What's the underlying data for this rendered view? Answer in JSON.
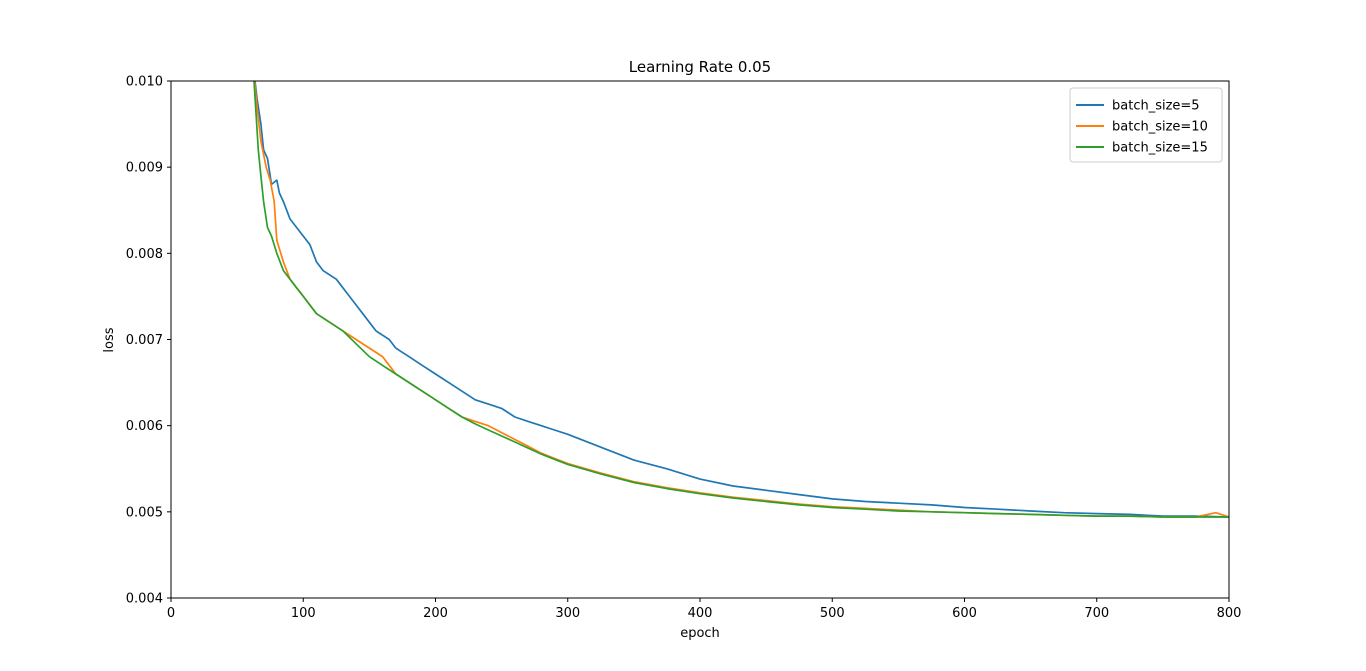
{
  "chart_data": {
    "type": "line",
    "title": "Learning Rate 0.05",
    "xlabel": "epoch",
    "ylabel": "loss",
    "xlim": [
      0,
      800
    ],
    "ylim": [
      0.004,
      0.01
    ],
    "xticks": [
      0,
      100,
      200,
      300,
      400,
      500,
      600,
      700,
      800
    ],
    "xtick_labels": [
      "0",
      "100",
      "200",
      "300",
      "400",
      "500",
      "600",
      "700",
      "800"
    ],
    "yticks": [
      0.004,
      0.005,
      0.006,
      0.007,
      0.008,
      0.009,
      0.01
    ],
    "ytick_labels": [
      "0.004",
      "0.005",
      "0.006",
      "0.007",
      "0.008",
      "0.009",
      "0.010"
    ],
    "grid": false,
    "legend": "top-right",
    "series": [
      {
        "name": "batch_size=5",
        "color": "#1f77b4",
        "points": [
          [
            62,
            0.0102
          ],
          [
            65,
            0.0098
          ],
          [
            68,
            0.0095
          ],
          [
            70,
            0.0092
          ],
          [
            73,
            0.0091
          ],
          [
            76,
            0.0088
          ],
          [
            80,
            0.00885
          ],
          [
            82,
            0.0087
          ],
          [
            85,
            0.0086
          ],
          [
            90,
            0.0084
          ],
          [
            95,
            0.0083
          ],
          [
            100,
            0.0082
          ],
          [
            105,
            0.0081
          ],
          [
            110,
            0.0079
          ],
          [
            115,
            0.0078
          ],
          [
            120,
            0.00775
          ],
          [
            125,
            0.0077
          ],
          [
            130,
            0.0076
          ],
          [
            135,
            0.0075
          ],
          [
            140,
            0.0074
          ],
          [
            145,
            0.0073
          ],
          [
            150,
            0.0072
          ],
          [
            155,
            0.0071
          ],
          [
            160,
            0.00705
          ],
          [
            165,
            0.007
          ],
          [
            170,
            0.0069
          ],
          [
            175,
            0.00685
          ],
          [
            180,
            0.0068
          ],
          [
            190,
            0.0067
          ],
          [
            200,
            0.0066
          ],
          [
            210,
            0.0065
          ],
          [
            220,
            0.0064
          ],
          [
            230,
            0.0063
          ],
          [
            240,
            0.00625
          ],
          [
            250,
            0.0062
          ],
          [
            260,
            0.0061
          ],
          [
            270,
            0.00605
          ],
          [
            280,
            0.006
          ],
          [
            290,
            0.00595
          ],
          [
            300,
            0.0059
          ],
          [
            325,
            0.00575
          ],
          [
            350,
            0.0056
          ],
          [
            375,
            0.0055
          ],
          [
            400,
            0.00538
          ],
          [
            425,
            0.0053
          ],
          [
            450,
            0.00525
          ],
          [
            475,
            0.0052
          ],
          [
            500,
            0.00515
          ],
          [
            525,
            0.00512
          ],
          [
            550,
            0.0051
          ],
          [
            575,
            0.00508
          ],
          [
            600,
            0.00505
          ],
          [
            625,
            0.00503
          ],
          [
            650,
            0.00501
          ],
          [
            675,
            0.00499
          ],
          [
            700,
            0.00498
          ],
          [
            725,
            0.00497
          ],
          [
            750,
            0.00495
          ],
          [
            775,
            0.00495
          ],
          [
            800,
            0.00494
          ]
        ]
      },
      {
        "name": "batch_size=10",
        "color": "#ff7f0e",
        "points": [
          [
            62,
            0.0102
          ],
          [
            65,
            0.0097
          ],
          [
            68,
            0.0093
          ],
          [
            72,
            0.009
          ],
          [
            75,
            0.00885
          ],
          [
            78,
            0.0086
          ],
          [
            80,
            0.00815
          ],
          [
            85,
            0.0079
          ],
          [
            90,
            0.0077
          ],
          [
            95,
            0.0076
          ],
          [
            100,
            0.0075
          ],
          [
            110,
            0.0073
          ],
          [
            120,
            0.0072
          ],
          [
            130,
            0.0071
          ],
          [
            140,
            0.007
          ],
          [
            150,
            0.0069
          ],
          [
            160,
            0.0068
          ],
          [
            170,
            0.0066
          ],
          [
            180,
            0.0065
          ],
          [
            190,
            0.0064
          ],
          [
            200,
            0.0063
          ],
          [
            210,
            0.0062
          ],
          [
            220,
            0.0061
          ],
          [
            230,
            0.00605
          ],
          [
            240,
            0.006
          ],
          [
            250,
            0.00592
          ],
          [
            260,
            0.00584
          ],
          [
            270,
            0.00576
          ],
          [
            280,
            0.00568
          ],
          [
            290,
            0.00562
          ],
          [
            300,
            0.00556
          ],
          [
            325,
            0.00545
          ],
          [
            350,
            0.00535
          ],
          [
            375,
            0.00528
          ],
          [
            400,
            0.00522
          ],
          [
            425,
            0.00517
          ],
          [
            450,
            0.00513
          ],
          [
            475,
            0.00509
          ],
          [
            500,
            0.00506
          ],
          [
            525,
            0.00504
          ],
          [
            550,
            0.00502
          ],
          [
            575,
            0.005
          ],
          [
            600,
            0.00499
          ],
          [
            625,
            0.00498
          ],
          [
            650,
            0.00497
          ],
          [
            675,
            0.00496
          ],
          [
            700,
            0.00495
          ],
          [
            725,
            0.00495
          ],
          [
            750,
            0.00494
          ],
          [
            775,
            0.00494
          ],
          [
            790,
            0.00499
          ],
          [
            800,
            0.00494
          ]
        ]
      },
      {
        "name": "batch_size=15",
        "color": "#2ca02c",
        "points": [
          [
            62,
            0.0102
          ],
          [
            64,
            0.0097
          ],
          [
            66,
            0.0092
          ],
          [
            68,
            0.0089
          ],
          [
            70,
            0.0086
          ],
          [
            73,
            0.0083
          ],
          [
            76,
            0.0082
          ],
          [
            80,
            0.008
          ],
          [
            85,
            0.0078
          ],
          [
            90,
            0.0077
          ],
          [
            95,
            0.0076
          ],
          [
            100,
            0.0075
          ],
          [
            110,
            0.0073
          ],
          [
            120,
            0.0072
          ],
          [
            130,
            0.0071
          ],
          [
            140,
            0.00695
          ],
          [
            150,
            0.0068
          ],
          [
            160,
            0.0067
          ],
          [
            170,
            0.0066
          ],
          [
            180,
            0.0065
          ],
          [
            190,
            0.0064
          ],
          [
            200,
            0.0063
          ],
          [
            210,
            0.0062
          ],
          [
            220,
            0.0061
          ],
          [
            230,
            0.00602
          ],
          [
            240,
            0.00595
          ],
          [
            250,
            0.00588
          ],
          [
            260,
            0.00581
          ],
          [
            270,
            0.00574
          ],
          [
            280,
            0.00567
          ],
          [
            290,
            0.00561
          ],
          [
            300,
            0.00555
          ],
          [
            325,
            0.00544
          ],
          [
            350,
            0.00534
          ],
          [
            375,
            0.00527
          ],
          [
            400,
            0.00521
          ],
          [
            425,
            0.00516
          ],
          [
            450,
            0.00512
          ],
          [
            475,
            0.00508
          ],
          [
            500,
            0.00505
          ],
          [
            525,
            0.00503
          ],
          [
            550,
            0.00501
          ],
          [
            575,
            0.005
          ],
          [
            600,
            0.00499
          ],
          [
            625,
            0.00498
          ],
          [
            650,
            0.00497
          ],
          [
            675,
            0.00496
          ],
          [
            700,
            0.00495
          ],
          [
            725,
            0.00495
          ],
          [
            750,
            0.00494
          ],
          [
            775,
            0.00494
          ],
          [
            800,
            0.00494
          ]
        ]
      }
    ]
  }
}
